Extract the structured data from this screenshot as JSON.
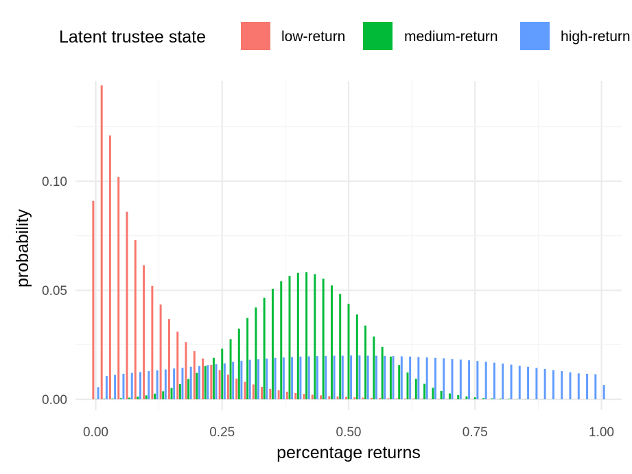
{
  "chart_data": {
    "type": "bar",
    "title": "",
    "xlabel": "percentage returns",
    "ylabel": "probability",
    "xlim": [
      -0.04,
      1.04
    ],
    "ylim": [
      -0.005,
      0.146
    ],
    "x_ticks": [
      0.0,
      0.25,
      0.5,
      0.75,
      1.0
    ],
    "x_tick_labels": [
      "0.00",
      "0.25",
      "0.50",
      "0.75",
      "1.00"
    ],
    "y_ticks": [
      0.0,
      0.05,
      0.1
    ],
    "y_tick_labels": [
      "0.00",
      "0.05",
      "0.10"
    ],
    "grid": true,
    "legend_position": "top",
    "legend_title": "Latent trustee state",
    "x": [
      0.0,
      0.0167,
      0.0333,
      0.05,
      0.0667,
      0.0833,
      0.1,
      0.1167,
      0.1333,
      0.15,
      0.1667,
      0.1833,
      0.2,
      0.2167,
      0.2333,
      0.25,
      0.2667,
      0.2833,
      0.3,
      0.3167,
      0.3333,
      0.35,
      0.3667,
      0.3833,
      0.4,
      0.4167,
      0.4333,
      0.45,
      0.4667,
      0.4833,
      0.5,
      0.5167,
      0.5333,
      0.55,
      0.5667,
      0.5833,
      0.6,
      0.6167,
      0.6333,
      0.65,
      0.6667,
      0.6833,
      0.7,
      0.7167,
      0.7333,
      0.75,
      0.7667,
      0.7833,
      0.8,
      0.8167,
      0.8333,
      0.85,
      0.8667,
      0.8833,
      0.9,
      0.9167,
      0.9333,
      0.95,
      0.9667,
      0.9833,
      1.0
    ],
    "series": [
      {
        "name": "low-return",
        "color": "#F8766D",
        "values": [
          0.091,
          0.144,
          0.121,
          0.102,
          0.086,
          0.073,
          0.0615,
          0.052,
          0.0435,
          0.0368,
          0.031,
          0.0262,
          0.0221,
          0.0187,
          0.0158,
          0.0134,
          0.0113,
          0.0095,
          0.008,
          0.0068,
          0.0057,
          0.0048,
          0.0041,
          0.0035,
          0.0029,
          0.0025,
          0.0021,
          0.0018,
          0.0015,
          0.0013,
          0.0011,
          0.0009,
          0.0008,
          0.0007,
          0.0006,
          0.0005,
          0.0004,
          0.00035,
          0.0003,
          0.00025,
          0.0002,
          0.00017,
          0.00014,
          0.00012,
          0.0001,
          8e-05,
          7e-05,
          6e-05,
          5e-05,
          4e-05,
          3e-05,
          3e-05,
          2e-05,
          2e-05,
          2e-05,
          1e-05,
          1e-05,
          1e-05,
          1e-05,
          1e-05,
          1e-05
        ]
      },
      {
        "name": "medium-return",
        "color": "#00BA38",
        "values": [
          0.0001,
          0.0002,
          0.0003,
          0.0005,
          0.0008,
          0.0012,
          0.0018,
          0.0026,
          0.0037,
          0.0052,
          0.007,
          0.0093,
          0.0121,
          0.0153,
          0.019,
          0.0232,
          0.0276,
          0.0324,
          0.0373,
          0.0421,
          0.0466,
          0.0507,
          0.0541,
          0.0566,
          0.058,
          0.0583,
          0.0574,
          0.0553,
          0.0522,
          0.0483,
          0.0438,
          0.0389,
          0.0338,
          0.0288,
          0.024,
          0.0196,
          0.0157,
          0.0123,
          0.0094,
          0.0071,
          0.0053,
          0.0038,
          0.0027,
          0.0019,
          0.0013,
          0.0009,
          0.0006,
          0.0004,
          0.0003,
          0.0002,
          0.0001,
          0.0001,
          5e-05,
          3e-05,
          2e-05,
          1e-05,
          1e-05,
          0.0,
          0.0,
          0.0,
          0.0
        ]
      },
      {
        "name": "high-return",
        "color": "#619CFF",
        "values": [
          0.0056,
          0.0107,
          0.0112,
          0.0117,
          0.0121,
          0.0125,
          0.0129,
          0.0133,
          0.0137,
          0.0141,
          0.0145,
          0.0149,
          0.0153,
          0.0157,
          0.0161,
          0.0165,
          0.0172,
          0.0177,
          0.0181,
          0.0184,
          0.0187,
          0.019,
          0.0192,
          0.0194,
          0.0196,
          0.0197,
          0.0198,
          0.0199,
          0.02,
          0.02,
          0.0201,
          0.0201,
          0.02,
          0.02,
          0.0199,
          0.0198,
          0.0197,
          0.0196,
          0.0194,
          0.0192,
          0.019,
          0.0188,
          0.0185,
          0.0182,
          0.0179,
          0.0176,
          0.0172,
          0.0168,
          0.0164,
          0.0159,
          0.0154,
          0.0149,
          0.0144,
          0.0139,
          0.0134,
          0.0129,
          0.0124,
          0.0119,
          0.0117,
          0.0115,
          0.0066
        ]
      }
    ]
  }
}
